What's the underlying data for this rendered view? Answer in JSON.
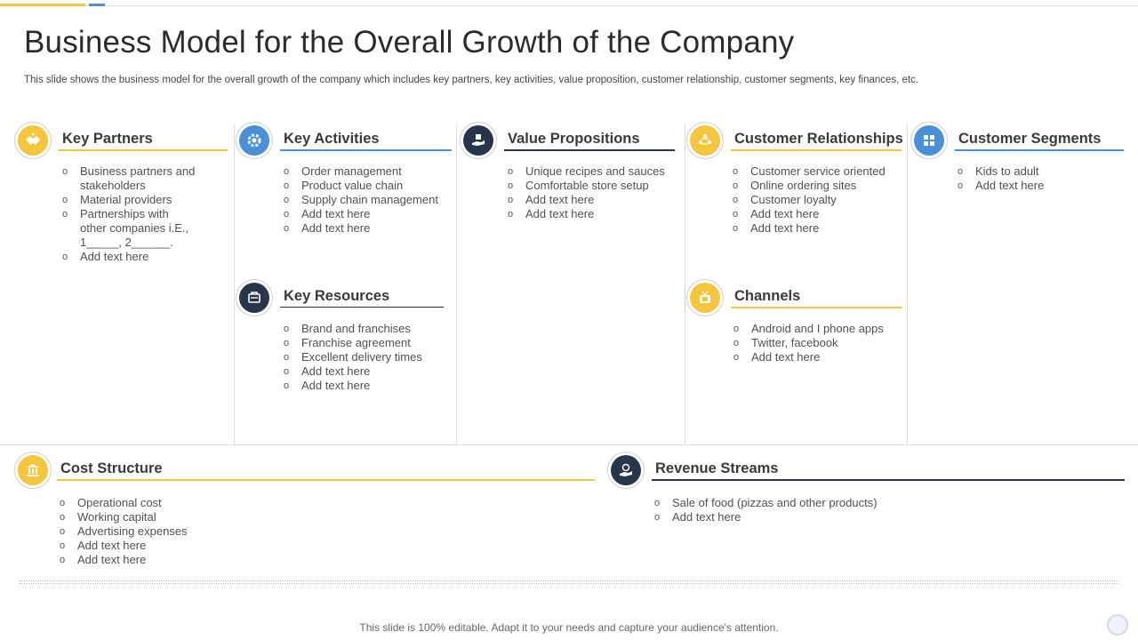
{
  "title": "Business Model for the Overall Growth of the Company",
  "subtitle": "This slide shows the business model for the overall growth of the company which includes key partners, key activities, value proposition, customer relationship, customer segments, key finances, etc.",
  "colors": {
    "yellow": "#f5c53b",
    "blue": "#4a90d9",
    "navy": "#27364a"
  },
  "sections": {
    "key_partners": {
      "heading": "Key Partners",
      "icon": "handshake-icon",
      "items": [
        "Business partners and stakeholders",
        "Material providers",
        "Partnerships with other companies i.E., 1_____, 2______.",
        "Add text here"
      ]
    },
    "key_activities": {
      "heading": "Key Activities",
      "icon": "gear-icon",
      "items": [
        "Order management",
        "Product value  chain",
        "Supply chain management",
        "Add text here",
        "Add text here"
      ]
    },
    "key_resources": {
      "heading": "Key Resources",
      "icon": "resources-icon",
      "items": [
        "Brand and franchises",
        "Franchise agreement",
        "Excellent delivery  times",
        "Add text here",
        "Add text here"
      ]
    },
    "value_propositions": {
      "heading": "Value Propositions",
      "icon": "value-hand-icon",
      "items": [
        "Unique recipes and sauces",
        "Comfortable  store setup",
        "Add text here",
        "Add text here"
      ]
    },
    "customer_relationships": {
      "heading": "Customer Relationships",
      "icon": "people-icon",
      "items": [
        "Customer service oriented",
        "Online ordering sites",
        "Customer loyalty",
        "Add text here",
        "Add text here"
      ]
    },
    "channels": {
      "heading": "Channels",
      "icon": "tv-icon",
      "items": [
        "Android and I phone apps",
        "Twitter, facebook",
        "Add text here"
      ]
    },
    "customer_segments": {
      "heading": "Customer Segments",
      "icon": "grid-icon",
      "items": [
        "Kids to adult",
        "Add text here"
      ]
    },
    "cost_structure": {
      "heading": "Cost Structure",
      "icon": "bank-icon",
      "items": [
        "Operational  cost",
        "Working capital",
        "Advertising  expenses",
        "Add text here",
        "Add text here"
      ]
    },
    "revenue_streams": {
      "heading": "Revenue Streams",
      "icon": "money-icon",
      "items": [
        "Sale of food (pizzas and other products)",
        "Add text here"
      ]
    }
  },
  "footer": "This slide is 100% editable. Adapt it to your needs and capture your audience's attention."
}
